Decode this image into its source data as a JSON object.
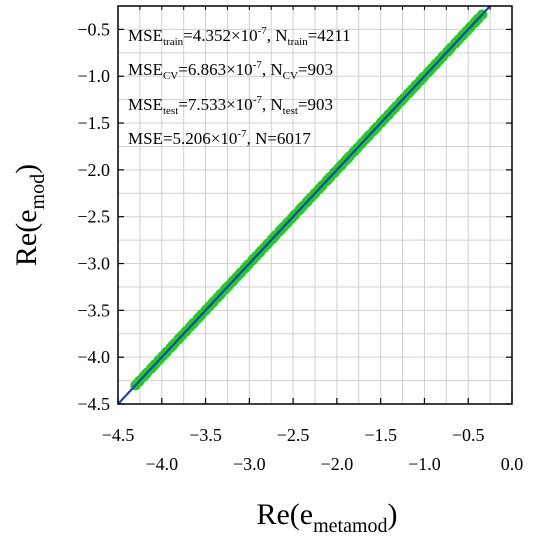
{
  "chart_data": {
    "type": "scatter",
    "xlabel": {
      "base": "Re(e",
      "sub": "metamod",
      "close": ")"
    },
    "ylabel": {
      "base": "Re(e",
      "sub": "mod",
      "close": ")"
    },
    "xlim": [
      -4.5,
      0.0
    ],
    "ylim": [
      -4.5,
      -0.25
    ],
    "x_ticks_bottom": [
      "-4.0",
      "-3.0",
      "-2.0",
      "-1.0",
      "0.0"
    ],
    "x_ticks_top": [
      "-4.5",
      "-3.5",
      "-2.5",
      "-1.5",
      "-0.5"
    ],
    "y_ticks": [
      "-0.5",
      "-1.0",
      "-1.5",
      "-2.0",
      "-2.5",
      "-3.0",
      "-3.5",
      "-4.0",
      "-4.5"
    ],
    "grid": true,
    "annotations": [
      {
        "parts": [
          {
            "t": "MSE"
          },
          {
            "t": "train",
            "sub": true
          },
          {
            "t": "=4.352×10"
          },
          {
            "t": "-7",
            "sup": true
          },
          {
            "t": ", N"
          },
          {
            "t": "train",
            "sub": true
          },
          {
            "t": "=4211"
          }
        ]
      },
      {
        "parts": [
          {
            "t": "MSE"
          },
          {
            "t": "CV",
            "sub": true
          },
          {
            "t": "=6.863×10"
          },
          {
            "t": "-7",
            "sup": true
          },
          {
            "t": ", N"
          },
          {
            "t": "CV",
            "sub": true
          },
          {
            "t": "=903"
          }
        ]
      },
      {
        "parts": [
          {
            "t": "MSE"
          },
          {
            "t": "test",
            "sub": true
          },
          {
            "t": "=7.533×10"
          },
          {
            "t": "-7",
            "sup": true
          },
          {
            "t": ", N"
          },
          {
            "t": "test",
            "sub": true
          },
          {
            "t": "=903"
          }
        ]
      },
      {
        "parts": [
          {
            "t": "MSE=5.206×10"
          },
          {
            "t": "-7",
            "sup": true
          },
          {
            "t": ", N=6017"
          }
        ]
      }
    ],
    "series": [
      {
        "kind": "points",
        "x_range": [
          -4.3,
          -0.35
        ],
        "y_equals_x": true,
        "color": "#22cc22"
      },
      {
        "kind": "line",
        "x_range": [
          -4.5,
          0.0
        ],
        "y_equals_x": true,
        "color": "#1f3fbf"
      }
    ],
    "colors": {
      "points": "#22cc22",
      "line": "#1f3fbf",
      "grid": "#d0d0d0",
      "frame": "#000000"
    }
  }
}
